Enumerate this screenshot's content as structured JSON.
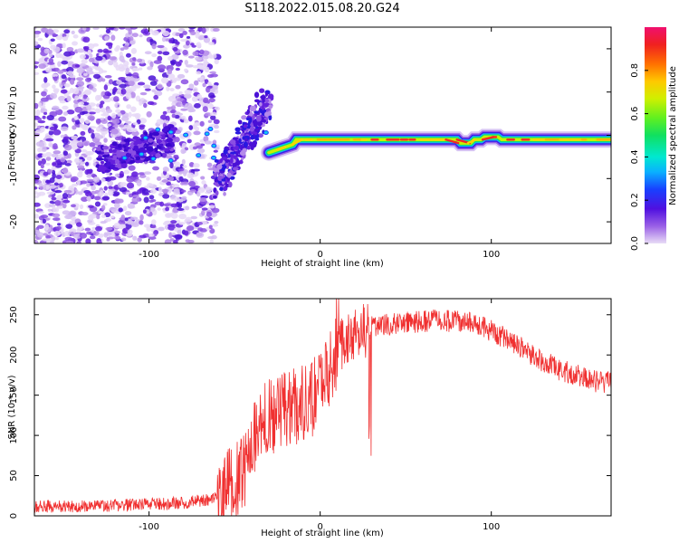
{
  "title": "S118.2022.015.08.20.G24",
  "chart_data": [
    {
      "type": "heatmap",
      "name": "spectrogram",
      "xlabel": "Height of straight line (km)",
      "ylabel": "Frequency (Hz)",
      "xlim": [
        -167,
        170
      ],
      "ylim": [
        -25,
        25
      ],
      "xticks": [
        -100,
        0,
        100
      ],
      "yticks": [
        -20,
        -10,
        0,
        10,
        20
      ],
      "colorbar": {
        "label": "Normalized spectral amplitude",
        "range": [
          0,
          1
        ],
        "ticks": [
          0.0,
          0.2,
          0.4,
          0.6,
          0.8
        ]
      },
      "features": {
        "noise_region_x": [
          -167,
          -60
        ],
        "rising_streak": {
          "x": [
            -60,
            -30
          ],
          "y": [
            -11,
            8
          ]
        },
        "main_line": {
          "x": [
            -30,
            170
          ],
          "y": [
            -4,
            -1
          ],
          "peak_amplitude": 0.85
        }
      }
    },
    {
      "type": "line",
      "name": "snr",
      "xlabel": "Height of straight line (km)",
      "ylabel": "SNR (10 * v/v)",
      "xlim": [
        -167,
        170
      ],
      "ylim": [
        0,
        270
      ],
      "xticks": [
        -100,
        0,
        100
      ],
      "yticks": [
        0,
        50,
        100,
        150,
        200,
        250
      ],
      "color": "#f03030",
      "series": [
        {
          "name": "SNR",
          "x": [
            -167,
            -140,
            -120,
            -100,
            -80,
            -65,
            -55,
            -45,
            -40,
            -35,
            -30,
            -25,
            -20,
            -15,
            -10,
            -5,
            0,
            5,
            10,
            15,
            20,
            25,
            30,
            40,
            50,
            60,
            70,
            80,
            90,
            100,
            110,
            120,
            130,
            140,
            150,
            160,
            170
          ],
          "values": [
            12,
            12,
            13,
            14,
            16,
            20,
            30,
            55,
            90,
            110,
            120,
            125,
            130,
            135,
            140,
            145,
            160,
            185,
            205,
            220,
            225,
            230,
            235,
            238,
            240,
            242,
            243,
            242,
            238,
            230,
            218,
            205,
            192,
            182,
            175,
            168,
            165
          ]
        }
      ]
    }
  ]
}
